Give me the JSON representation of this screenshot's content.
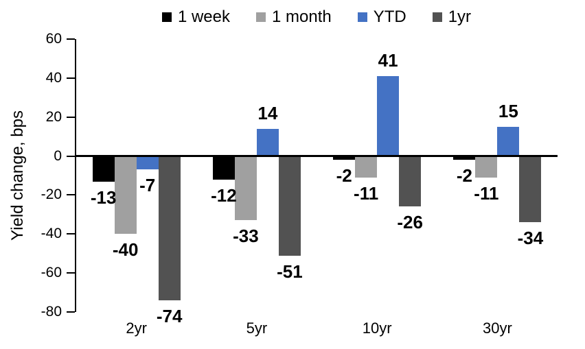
{
  "chart_data": {
    "type": "bar",
    "title": "",
    "ylabel": "Yield change, bps",
    "xlabel": "",
    "categories": [
      "2yr",
      "5yr",
      "10yr",
      "30yr"
    ],
    "series": [
      {
        "name": "1 week",
        "color": "#000000",
        "values": [
          -13,
          -12,
          -2,
          -2
        ]
      },
      {
        "name": "1 month",
        "color": "#A0A0A0",
        "values": [
          -40,
          -33,
          -11,
          -11
        ]
      },
      {
        "name": "YTD",
        "color": "#4472C4",
        "values": [
          -7,
          14,
          41,
          15
        ]
      },
      {
        "name": "1yr",
        "color": "#525252",
        "values": [
          -74,
          -51,
          -26,
          -34
        ]
      }
    ],
    "ylim": [
      -80,
      60
    ],
    "ytick_step": 20,
    "yticks": [
      60,
      40,
      20,
      0,
      -20,
      -40,
      -60,
      -80
    ],
    "grid": false,
    "legend_position": "top",
    "data_labels": "outside-end-bold",
    "axis_color": "#000000",
    "background_color": "#FFFFFF"
  }
}
